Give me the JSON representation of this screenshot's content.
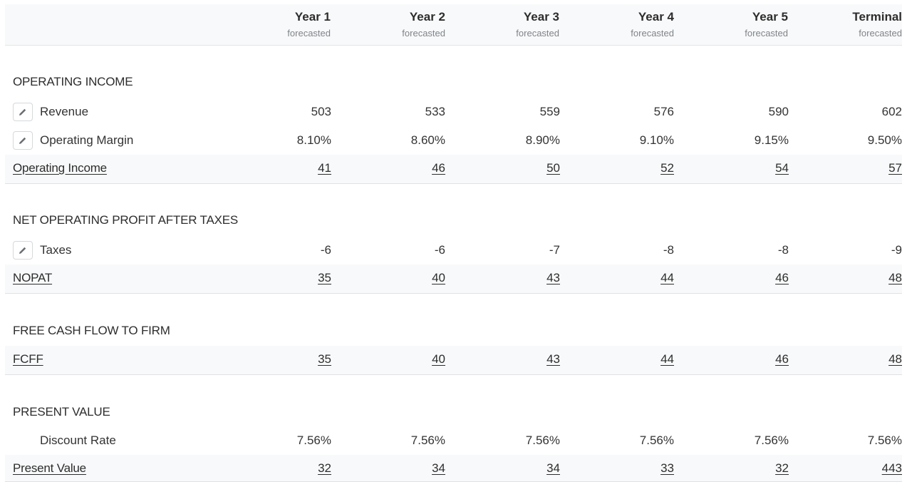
{
  "columns": [
    {
      "label": "Year 1",
      "sub": "forecasted"
    },
    {
      "label": "Year 2",
      "sub": "forecasted"
    },
    {
      "label": "Year 3",
      "sub": "forecasted"
    },
    {
      "label": "Year 4",
      "sub": "forecasted"
    },
    {
      "label": "Year 5",
      "sub": "forecasted"
    },
    {
      "label": "Terminal",
      "sub": "forecasted"
    }
  ],
  "operating_income": {
    "title": "OPERATING INCOME",
    "revenue": {
      "label": "Revenue",
      "values": [
        "503",
        "533",
        "559",
        "576",
        "590",
        "602"
      ],
      "icon": "pencil-icon"
    },
    "margin": {
      "label": "Operating Margin",
      "values": [
        "8.10%",
        "8.60%",
        "8.90%",
        "9.10%",
        "9.15%",
        "9.50%"
      ],
      "icon": "pencil-icon"
    },
    "total": {
      "label": "Operating Income",
      "values": [
        "41",
        "46",
        "50",
        "52",
        "54",
        "57"
      ]
    }
  },
  "nopat": {
    "title": "NET OPERATING PROFIT AFTER TAXES",
    "taxes": {
      "label": "Taxes",
      "values": [
        "-6",
        "-6",
        "-7",
        "-8",
        "-8",
        "-9"
      ],
      "icon": "pencil-icon"
    },
    "total": {
      "label": "NOPAT",
      "values": [
        "35",
        "40",
        "43",
        "44",
        "46",
        "48"
      ]
    }
  },
  "fcff": {
    "title": "FREE CASH FLOW TO FIRM",
    "total": {
      "label": "FCFF",
      "values": [
        "35",
        "40",
        "43",
        "44",
        "46",
        "48"
      ]
    }
  },
  "present_value": {
    "title": "PRESENT VALUE",
    "discount": {
      "label": "Discount Rate",
      "values": [
        "7.56%",
        "7.56%",
        "7.56%",
        "7.56%",
        "7.56%",
        "7.56%"
      ]
    },
    "total": {
      "label": "Present Value",
      "values": [
        "32",
        "34",
        "34",
        "33",
        "32",
        "443"
      ]
    }
  }
}
